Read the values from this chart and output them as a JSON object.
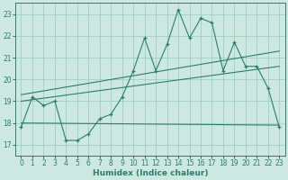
{
  "background_color": "#cce8e0",
  "grid_color": "#9ecfbf",
  "line_color": "#2d7d6e",
  "xlabel": "Humidex (Indice chaleur)",
  "ylim": [
    16.5,
    23.5
  ],
  "xlim": [
    -0.5,
    23.5
  ],
  "yticks": [
    17,
    18,
    19,
    20,
    21,
    22,
    23
  ],
  "xticks": [
    0,
    1,
    2,
    3,
    4,
    5,
    6,
    7,
    8,
    9,
    10,
    11,
    12,
    13,
    14,
    15,
    16,
    17,
    18,
    19,
    20,
    21,
    22,
    23
  ],
  "series1_x": [
    0,
    1,
    2,
    3,
    4,
    5,
    6,
    7,
    8,
    9,
    10,
    11,
    12,
    13,
    14,
    15,
    16,
    17,
    18,
    19,
    20,
    21,
    22,
    23
  ],
  "series1_y": [
    17.8,
    19.2,
    18.8,
    19.0,
    17.2,
    17.2,
    17.5,
    18.2,
    18.4,
    19.2,
    20.4,
    21.9,
    20.4,
    21.6,
    23.2,
    21.9,
    22.8,
    22.6,
    20.4,
    21.7,
    20.6,
    20.6,
    19.6,
    17.8
  ],
  "series_trend1_x": [
    0,
    23
  ],
  "series_trend1_y": [
    19.3,
    21.3
  ],
  "series_trend2_x": [
    0,
    23
  ],
  "series_trend2_y": [
    19.0,
    20.6
  ],
  "series_trend3_x": [
    0,
    23
  ],
  "series_trend3_y": [
    18.0,
    17.9
  ]
}
